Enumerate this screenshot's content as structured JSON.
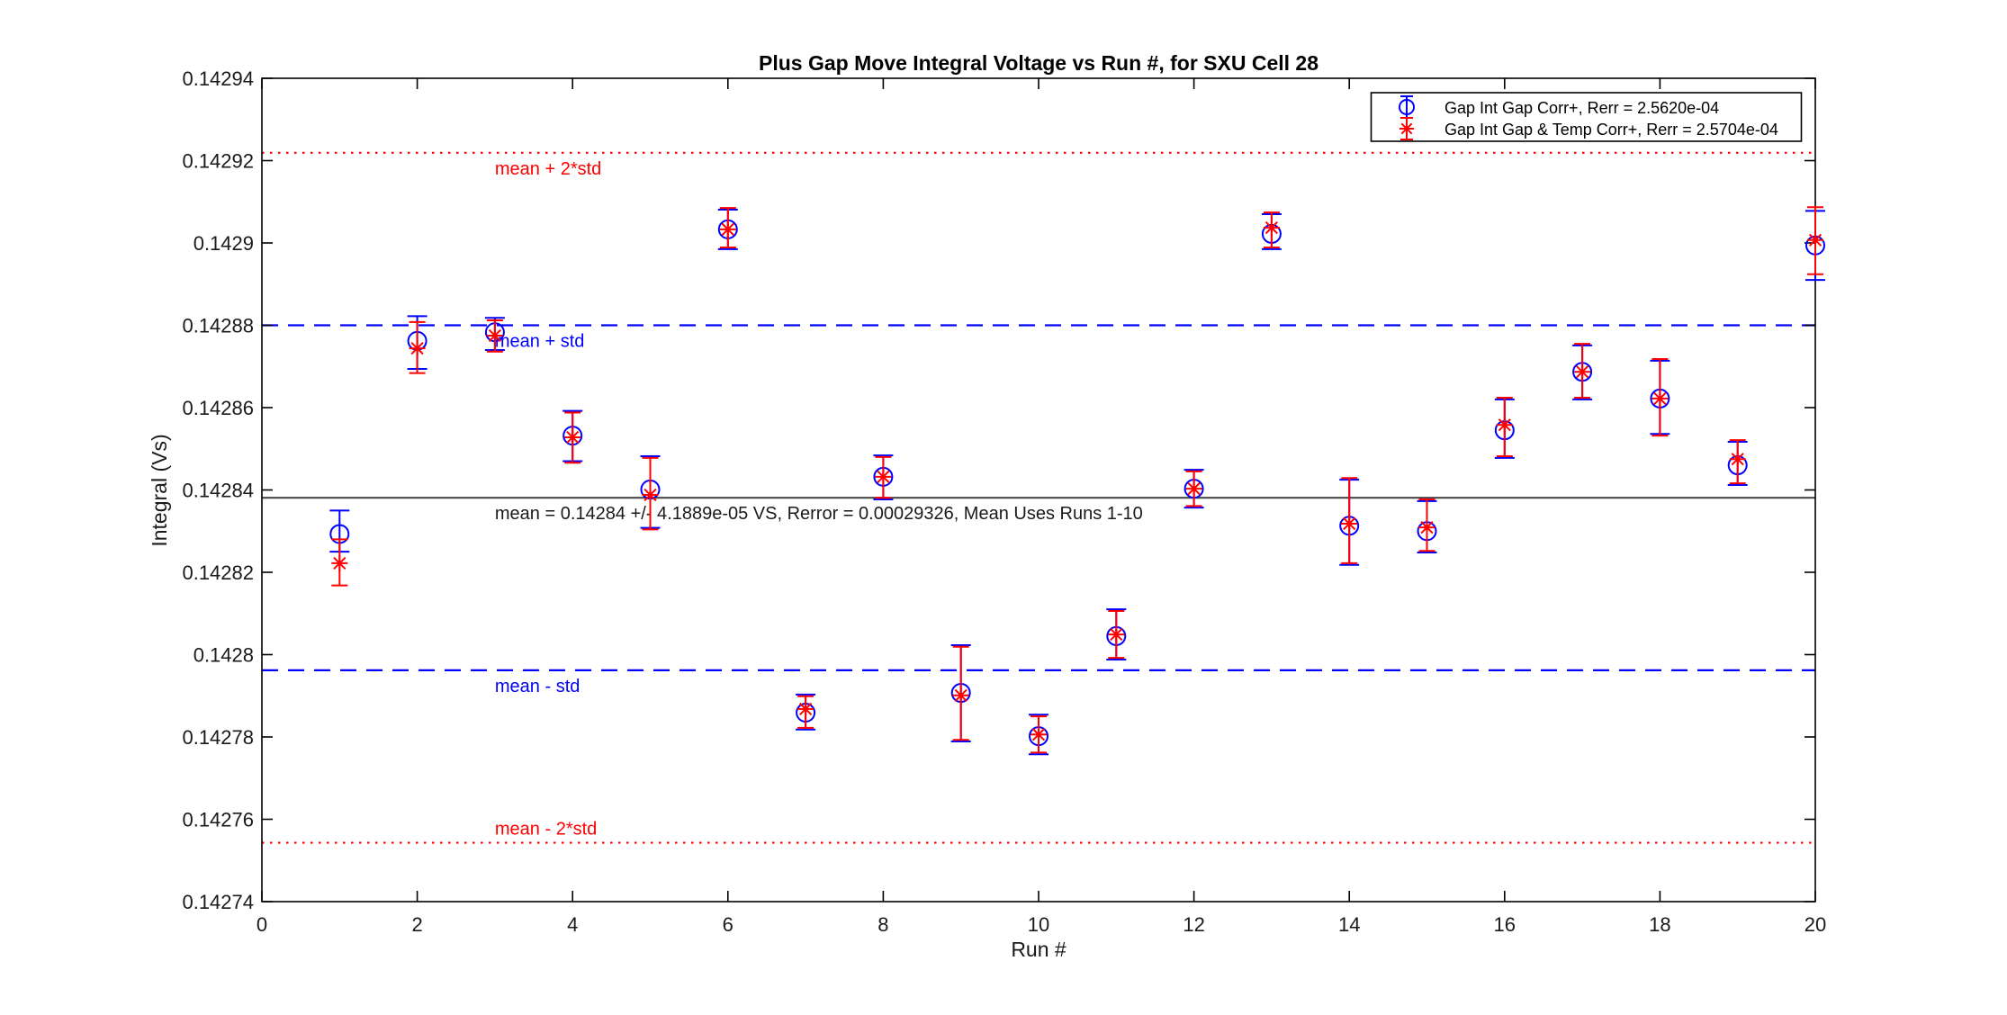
{
  "figure": {
    "background": "#ffffff",
    "axis_color": "#000000"
  },
  "stats": {
    "mean": "0.14284",
    "std": "4.1889e-05",
    "rerror": "0.00029326",
    "mean_uses_runs": "1-10"
  },
  "chart_data": {
    "type": "scatter",
    "title": "Plus Gap Move Integral Voltage vs Run #, for SXU Cell 28",
    "xlabel": "Run #",
    "ylabel": "Integral (Vs)",
    "xlim": [
      0,
      20
    ],
    "ylim": [
      0.14274,
      0.14294
    ],
    "xticks": [
      0,
      2,
      4,
      6,
      8,
      10,
      12,
      14,
      16,
      18,
      20
    ],
    "xtick_labels": [
      "0",
      "2",
      "4",
      "6",
      "8",
      "10",
      "12",
      "14",
      "16",
      "18",
      "20"
    ],
    "yticks": [
      0.14274,
      0.14276,
      0.14278,
      0.1428,
      0.14282,
      0.14284,
      0.14286,
      0.14288,
      0.1429,
      0.14292,
      0.14294
    ],
    "ytick_labels": [
      "0.14274",
      "0.14276",
      "0.14278",
      "0.1428",
      "0.14282",
      "0.14284",
      "0.14286",
      "0.14288",
      "0.1429",
      "0.14292",
      "0.14294"
    ],
    "grid": false,
    "legend_position": "top-right-inside",
    "x": [
      1,
      2,
      3,
      4,
      5,
      6,
      7,
      8,
      9,
      10,
      11,
      12,
      13,
      14,
      15,
      16,
      17,
      18,
      19,
      20
    ],
    "series": [
      {
        "name": "Gap Int Gap Corr+, Rerr = 2.5620e-04",
        "marker": "circle",
        "color": "#0000ff",
        "values": [
          0.1428293,
          0.1428762,
          0.1428783,
          0.1428532,
          0.1428401,
          0.1429033,
          0.1427859,
          0.1428432,
          0.1427907,
          0.1427802,
          0.1428045,
          0.1428403,
          0.1429022,
          0.1428313,
          0.14283,
          0.1428545,
          0.1428687,
          0.1428622,
          0.142846,
          0.1428994
        ],
        "err_hi": [
          0.142835,
          0.1428822,
          0.1428818,
          0.1428592,
          0.1428482,
          0.1429081,
          0.1427903,
          0.1428484,
          0.1428023,
          0.1427854,
          0.142811,
          0.1428449,
          0.142907,
          0.1428425,
          0.1428373,
          0.142862,
          0.1428751,
          0.1428714,
          0.1428517,
          0.1429078
        ],
        "err_lo": [
          0.142825,
          0.1428694,
          0.142874,
          0.142847,
          0.1428308,
          0.1428985,
          0.1427818,
          0.1428377,
          0.1427789,
          0.1427758,
          0.1427988,
          0.1428357,
          0.1428985,
          0.1428218,
          0.1428248,
          0.1428478,
          0.142862,
          0.1428536,
          0.1428412,
          0.142891
        ]
      },
      {
        "name": "Gap Int Gap & Temp  Corr+, Rerr = 2.5704e-04",
        "marker": "asterisk",
        "color": "#ff0000",
        "values": [
          0.1428222,
          0.1428744,
          0.1428775,
          0.1428528,
          0.1428388,
          0.1429033,
          0.1427868,
          0.1428432,
          0.1427901,
          0.1427806,
          0.1428049,
          0.1428403,
          0.1429037,
          0.1428318,
          0.1428309,
          0.1428558,
          0.1428687,
          0.1428622,
          0.1428475,
          0.1429007
        ],
        "err_hi": [
          0.142828,
          0.1428808,
          0.1428812,
          0.1428588,
          0.1428478,
          0.1429085,
          0.1427899,
          0.142848,
          0.1428019,
          0.142785,
          0.1428106,
          0.1428445,
          0.1429074,
          0.1428429,
          0.1428377,
          0.1428624,
          0.1428755,
          0.1428718,
          0.1428521,
          0.1429087
        ],
        "err_lo": [
          0.1428168,
          0.1428684,
          0.1428736,
          0.1428466,
          0.1428304,
          0.1428989,
          0.1427822,
          0.1428381,
          0.1427793,
          0.1427762,
          0.1427992,
          0.1428361,
          0.1428989,
          0.1428222,
          0.1428252,
          0.1428482,
          0.1428624,
          0.1428532,
          0.1428416,
          0.1428924
        ]
      }
    ],
    "reference_lines": [
      {
        "label": "mean + 2*std",
        "value": 0.1429219,
        "style": "dotted",
        "color": "#ff0000",
        "label_x": 3,
        "label_side": "below"
      },
      {
        "label": "mean + std",
        "value": 0.14288,
        "style": "dashed",
        "color": "#0000ff",
        "label_x": 3,
        "label_side": "below"
      },
      {
        "label": "mean = 0.14284 +/- 4.1889e-05 VS, Rerror = 0.00029326, Mean Uses Runs 1-10",
        "value": 0.1428381,
        "style": "solid",
        "color": "#4a4a4a",
        "label_color": "#1a1a1a",
        "label_x": 3,
        "label_side": "below"
      },
      {
        "label": "mean - std",
        "value": 0.1427962,
        "style": "dashed",
        "color": "#0000ff",
        "label_x": 3,
        "label_side": "below"
      },
      {
        "label": "mean - 2*std",
        "value": 0.1427543,
        "style": "dotted",
        "color": "#ff0000",
        "label_x": 3,
        "label_side": "above"
      }
    ]
  }
}
